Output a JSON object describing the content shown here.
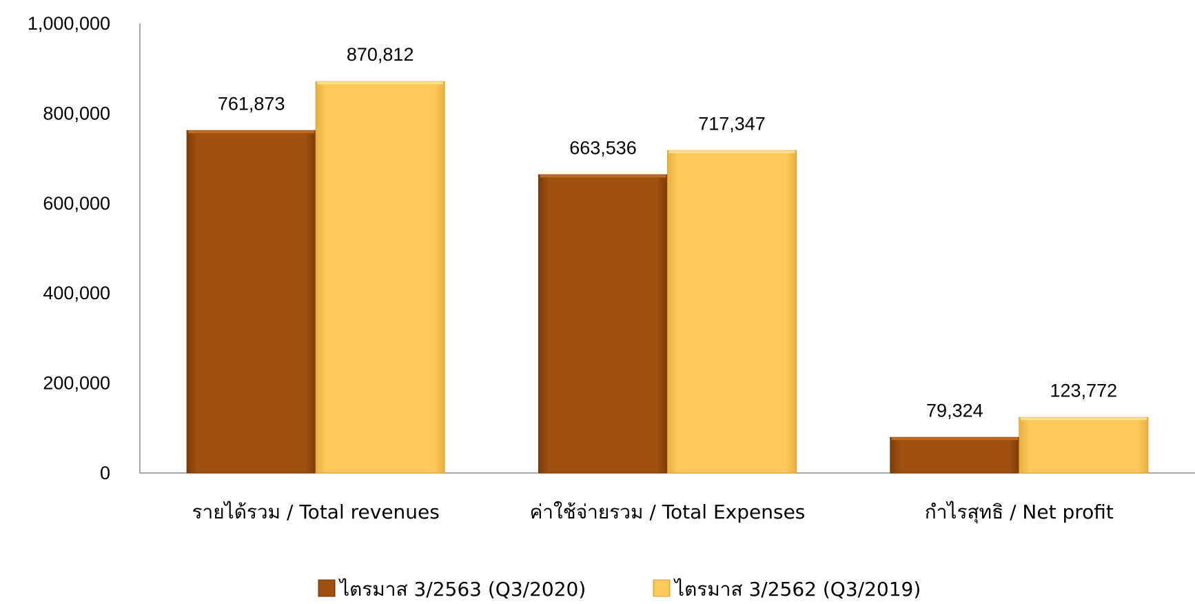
{
  "chart_data": {
    "type": "bar",
    "categories": [
      "รายได้รวม / Total revenues",
      "ค่าใช้จ่ายรวม / Total Expenses",
      "กำไรสุทธิ / Net profit"
    ],
    "series": [
      {
        "name": "ไตรมาส 3/2563 (Q3/2020)",
        "values": [
          761873,
          663536,
          79324
        ],
        "labels": [
          "761,873",
          "663,536",
          "79,324"
        ],
        "color": "#A0500F"
      },
      {
        "name": "ไตรมาส 3/2562 (Q3/2019)",
        "values": [
          870812,
          717347,
          123772
        ],
        "labels": [
          "870,812",
          "717,347",
          "123,772"
        ],
        "color": "#FCC95A"
      }
    ],
    "ylim": [
      0,
      1000000
    ],
    "yticks": [
      {
        "value": 0,
        "label": "0"
      },
      {
        "value": 200000,
        "label": "200,000"
      },
      {
        "value": 400000,
        "label": "400,000"
      },
      {
        "value": 600000,
        "label": "600,000"
      },
      {
        "value": 800000,
        "label": "800,000"
      },
      {
        "value": 1000000,
        "label": "1,000,000"
      }
    ],
    "grid": false,
    "legend": "bottom",
    "xlabel": "",
    "ylabel": ""
  }
}
